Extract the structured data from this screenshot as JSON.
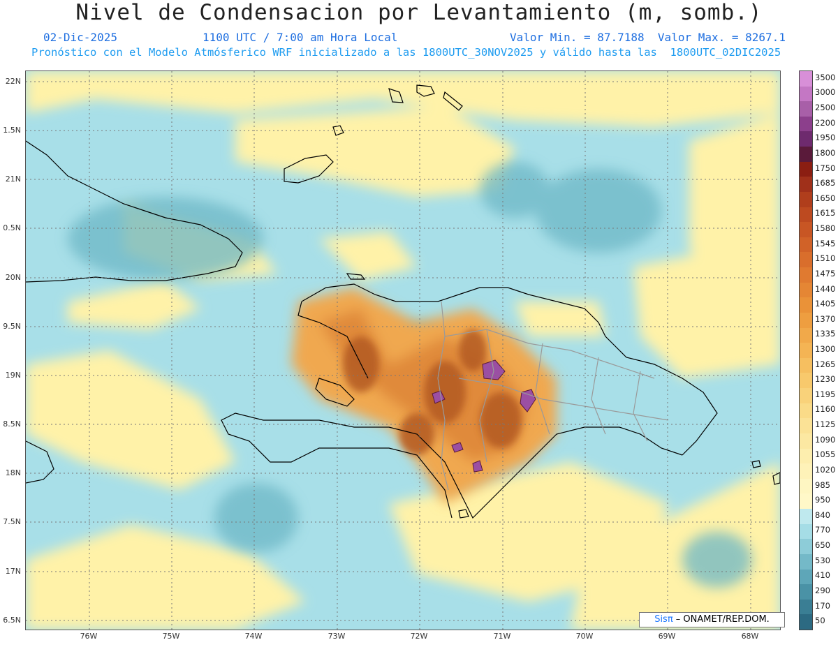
{
  "title": "Nivel de Condensacion por Levantamiento (m, somb.)",
  "date": "02-Dic-2025",
  "time": "1100 UTC / 7:00 am Hora Local",
  "stats": "Valor Min. = 87.7188  Valor Max. = 8267.1",
  "forecast_text": "Pronóstico con el Modelo Atmósferico WRF inicializado a las 1800UTC_30NOV2025 y válido hasta las  1800UTC_02DIC2025",
  "lat_labels": [
    "22N",
    "1.5N",
    "21N",
    "0.5N",
    "20N",
    "9.5N",
    "19N",
    "8.5N",
    "18N",
    "7.5N",
    "17N",
    "6.5N"
  ],
  "lon_labels": [
    "76W",
    "75W",
    "74W",
    "73W",
    "72W",
    "71W",
    "70W",
    "69W",
    "68W"
  ],
  "colorbar": {
    "labels": [
      "3500",
      "3000",
      "2500",
      "2200",
      "1950",
      "1800",
      "1750",
      "1685",
      "1650",
      "1615",
      "1580",
      "1545",
      "1510",
      "1475",
      "1440",
      "1405",
      "1370",
      "1335",
      "1300",
      "1265",
      "1230",
      "1195",
      "1160",
      "1125",
      "1090",
      "1055",
      "1020",
      "985",
      "950",
      "840",
      "770",
      "650",
      "530",
      "410",
      "290",
      "170",
      "50"
    ],
    "colors": [
      "#d88fd8",
      "#c477c4",
      "#a85fa8",
      "#8c3f8c",
      "#6e2a6e",
      "#5a1a3a",
      "#8b1e12",
      "#a0301a",
      "#b03e1c",
      "#bd4a20",
      "#c85624",
      "#d16228",
      "#d96e2c",
      "#e07a30",
      "#e58634",
      "#ea9238",
      "#ee9e40",
      "#f1a94a",
      "#f4b454",
      "#f6bf60",
      "#f8c96c",
      "#f9d27a",
      "#fadb88",
      "#fbe296",
      "#fce8a2",
      "#fdeeae",
      "#fef2b8",
      "#fef6c2",
      "#fff8c8",
      "#bfe9ee",
      "#a5dde6",
      "#8dccd8",
      "#74b9c8",
      "#5ea6b8",
      "#4a92a6",
      "#3a7e94",
      "#2c6a82"
    ]
  },
  "credit": {
    "brand": "Sisπ",
    "rest": " – ONAMET/REP.DOM."
  },
  "colors": {
    "sea": "#a8dfe8",
    "sea_dark": "#6db7c6",
    "yellow": "#fff2a8",
    "orange": "#e08a3a",
    "brown": "#b35a22",
    "purple": "#9b4fa3",
    "coast": "#000000",
    "borders": "#9a9a9a"
  }
}
